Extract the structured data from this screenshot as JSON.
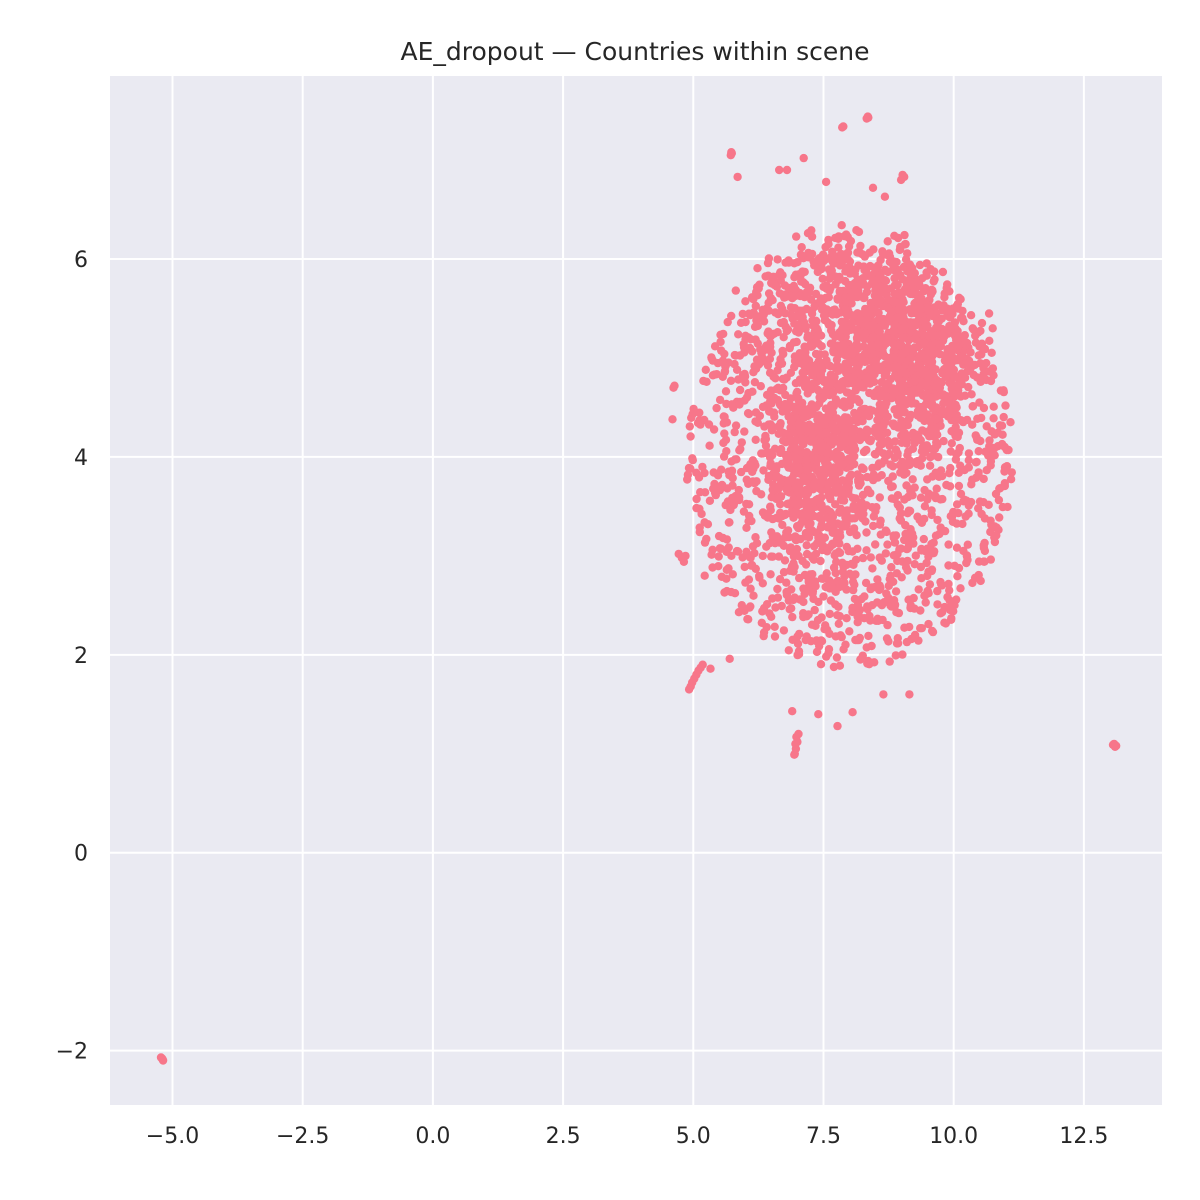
{
  "chart_data": {
    "type": "scatter",
    "title": "AE_dropout — Countries within scene",
    "xlabel": "",
    "ylabel": "",
    "xlim": [
      -6.2,
      14.0
    ],
    "ylim": [
      -2.55,
      7.85
    ],
    "x_ticks": [
      -5.0,
      -2.5,
      0.0,
      2.5,
      5.0,
      7.5,
      10.0,
      12.5
    ],
    "x_tick_labels": [
      "−5.0",
      "−2.5",
      "0.0",
      "2.5",
      "5.0",
      "7.5",
      "10.0",
      "12.5"
    ],
    "y_ticks": [
      -2,
      0,
      2,
      4,
      6
    ],
    "y_tick_labels": [
      "−2",
      "0",
      "2",
      "4",
      "6"
    ],
    "grid": true,
    "legend": "none",
    "colors": {
      "points": "#f7768a",
      "background": "#eaeaf2",
      "grid": "#ffffff",
      "text": "#262626"
    },
    "series": [
      {
        "name": "",
        "main_cluster": {
          "center": [
            8.0,
            4.0
          ],
          "x_range": [
            4.6,
            11.0
          ],
          "y_range": [
            1.3,
            7.4
          ],
          "approx_count": 3000
        },
        "points": [
          [
            -5.2,
            -2.08
          ],
          [
            -5.18,
            -2.1
          ],
          [
            -5.22,
            -2.07
          ],
          [
            -5.19,
            -2.09
          ],
          [
            13.08,
            1.1
          ],
          [
            13.12,
            1.08
          ],
          [
            13.1,
            1.07
          ],
          [
            13.06,
            1.09
          ],
          [
            8.35,
            7.44
          ],
          [
            8.33,
            7.42
          ],
          [
            8.36,
            7.43
          ],
          [
            7.86,
            7.33
          ],
          [
            7.88,
            7.34
          ],
          [
            5.73,
            7.08
          ],
          [
            5.72,
            7.05
          ],
          [
            5.74,
            7.07
          ],
          [
            7.12,
            7.02
          ],
          [
            9.02,
            6.85
          ],
          [
            9.05,
            6.83
          ],
          [
            8.99,
            6.8
          ],
          [
            5.85,
            6.83
          ],
          [
            6.65,
            6.9
          ],
          [
            6.8,
            6.9
          ],
          [
            7.55,
            6.78
          ],
          [
            8.68,
            6.63
          ],
          [
            8.45,
            6.72
          ],
          [
            6.95,
            1.0
          ],
          [
            6.97,
            1.05
          ],
          [
            6.96,
            1.1
          ],
          [
            7.0,
            1.12
          ],
          [
            6.98,
            1.17
          ],
          [
            7.02,
            1.2
          ],
          [
            6.94,
            0.99
          ],
          [
            7.77,
            1.28
          ],
          [
            6.9,
            1.43
          ],
          [
            7.4,
            1.4
          ],
          [
            8.06,
            1.42
          ],
          [
            4.92,
            1.65
          ],
          [
            4.95,
            1.68
          ],
          [
            4.98,
            1.72
          ],
          [
            5.02,
            1.76
          ],
          [
            5.06,
            1.8
          ],
          [
            5.1,
            1.84
          ],
          [
            5.14,
            1.87
          ],
          [
            5.18,
            1.9
          ],
          [
            5.33,
            1.86
          ],
          [
            5.7,
            1.96
          ],
          [
            4.72,
            3.02
          ],
          [
            4.78,
            2.98
          ],
          [
            4.82,
            2.94
          ],
          [
            4.85,
            3.0
          ],
          [
            4.62,
            4.7
          ],
          [
            4.6,
            4.38
          ],
          [
            4.64,
            4.72
          ],
          [
            10.98,
            4.1
          ],
          [
            11.02,
            4.07
          ],
          [
            10.93,
            4.13
          ],
          [
            10.75,
            5.3
          ],
          [
            10.68,
            5.45
          ],
          [
            10.58,
            3.08
          ],
          [
            10.6,
            3.05
          ],
          [
            5.22,
            2.8
          ],
          [
            6.1,
            2.98
          ],
          [
            9.15,
            1.6
          ],
          [
            8.65,
            1.6
          ]
        ]
      }
    ]
  }
}
